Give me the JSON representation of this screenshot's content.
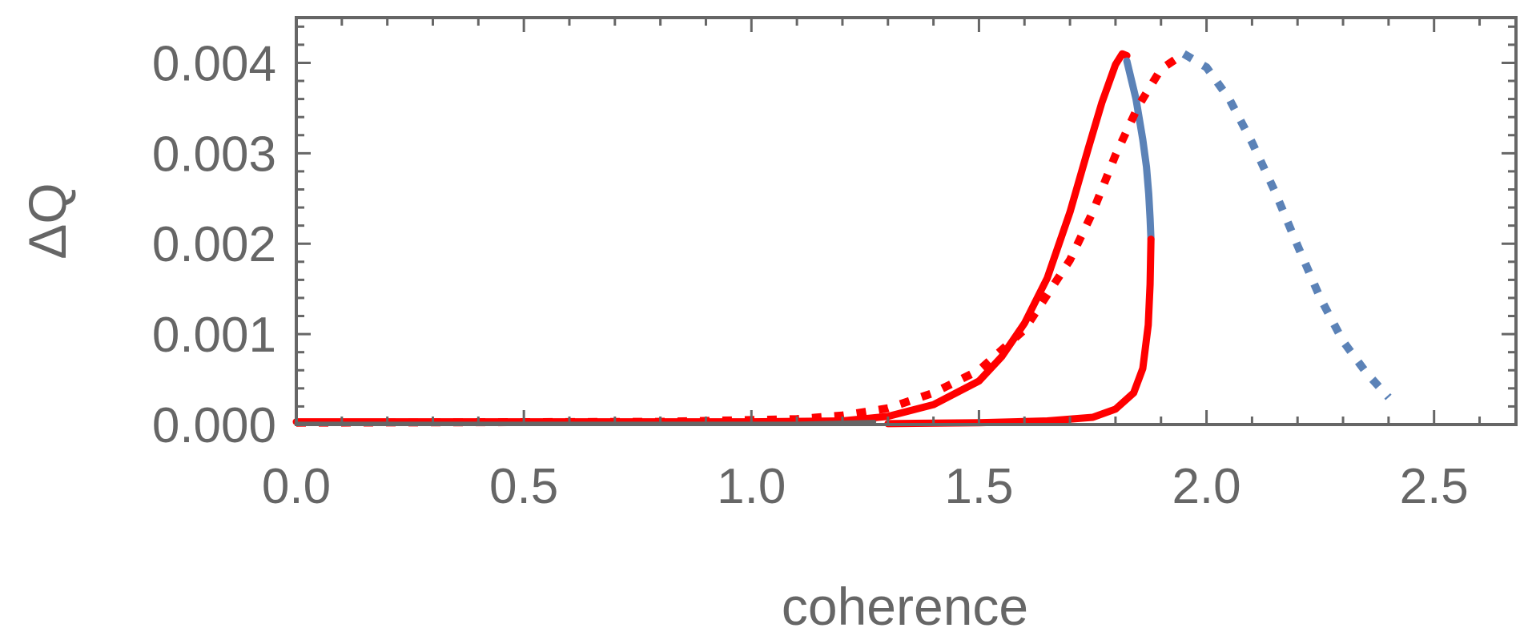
{
  "chart_data": {
    "type": "line",
    "title": "",
    "xlabel": "coherence",
    "ylabel": "ΔQ",
    "xlim": [
      0.0,
      2.68
    ],
    "ylim": [
      0.0,
      0.0045
    ],
    "x_ticks": [
      "0.0",
      "0.5",
      "1.0",
      "1.5",
      "2.0",
      "2.5"
    ],
    "x_tick_values": [
      0.0,
      0.5,
      1.0,
      1.5,
      2.0,
      2.5
    ],
    "y_ticks": [
      "0.000",
      "0.001",
      "0.002",
      "0.003",
      "0.004"
    ],
    "y_tick_values": [
      0.0,
      0.001,
      0.002,
      0.003,
      0.004
    ],
    "grid": false,
    "colors": {
      "red": "#ff0000",
      "blue": "#5b82b7",
      "axis": "#666666"
    },
    "series": [
      {
        "style": "solid",
        "color": "#ff0000",
        "points": [
          [
            0.0,
            3e-05
          ],
          [
            0.5,
            3e-05
          ],
          [
            1.0,
            3e-05
          ],
          [
            1.2,
            4e-05
          ],
          [
            1.3,
            9e-05
          ],
          [
            1.4,
            0.00022
          ],
          [
            1.5,
            0.00048
          ],
          [
            1.55,
            0.00075
          ],
          [
            1.6,
            0.00112
          ],
          [
            1.65,
            0.00162
          ],
          [
            1.7,
            0.00235
          ],
          [
            1.74,
            0.00305
          ],
          [
            1.77,
            0.00356
          ],
          [
            1.8,
            0.00398
          ],
          [
            1.815,
            0.0041
          ],
          [
            1.825,
            0.00408
          ]
        ]
      },
      {
        "style": "solid",
        "color": "#5b82b7",
        "points": [
          [
            1.825,
            0.00402
          ],
          [
            1.845,
            0.0036
          ],
          [
            1.86,
            0.00315
          ],
          [
            1.868,
            0.00285
          ],
          [
            1.873,
            0.00255
          ],
          [
            1.876,
            0.00228
          ],
          [
            1.878,
            0.00205
          ]
        ]
      },
      {
        "style": "solid",
        "color": "#ff0000",
        "points": [
          [
            1.878,
            0.00205
          ],
          [
            1.876,
            0.00155
          ],
          [
            1.872,
            0.0011
          ],
          [
            1.86,
            0.00062
          ],
          [
            1.84,
            0.00035
          ],
          [
            1.8,
            0.00017
          ],
          [
            1.75,
            8e-05
          ],
          [
            1.65,
            4e-05
          ],
          [
            1.5,
            2e-05
          ],
          [
            1.3,
            1e-05
          ]
        ]
      },
      {
        "style": "dotted",
        "color": "#ff0000",
        "points": [
          [
            0.0,
            2e-05
          ],
          [
            0.8,
            3e-05
          ],
          [
            1.1,
            6e-05
          ],
          [
            1.2,
            0.0001
          ],
          [
            1.3,
            0.00018
          ],
          [
            1.4,
            0.00035
          ],
          [
            1.5,
            0.0006
          ],
          [
            1.6,
            0.00105
          ],
          [
            1.7,
            0.00182
          ],
          [
            1.75,
            0.00235
          ],
          [
            1.8,
            0.00298
          ],
          [
            1.85,
            0.00352
          ],
          [
            1.9,
            0.00393
          ],
          [
            1.95,
            0.0041
          ]
        ]
      },
      {
        "style": "dotted",
        "color": "#5b82b7",
        "points": [
          [
            1.95,
            0.0041
          ],
          [
            2.0,
            0.00395
          ],
          [
            2.05,
            0.0036
          ],
          [
            2.1,
            0.00312
          ],
          [
            2.15,
            0.00258
          ],
          [
            2.2,
            0.00198
          ],
          [
            2.25,
            0.0014
          ],
          [
            2.3,
            0.00092
          ],
          [
            2.35,
            0.00058
          ],
          [
            2.4,
            0.0003
          ]
        ]
      },
      {
        "style": "solid-thin",
        "color": "#666666",
        "points": [
          [
            0.0,
            1e-05
          ],
          [
            1.1,
            1e-05
          ],
          [
            1.27,
            3e-05
          ]
        ]
      }
    ]
  }
}
